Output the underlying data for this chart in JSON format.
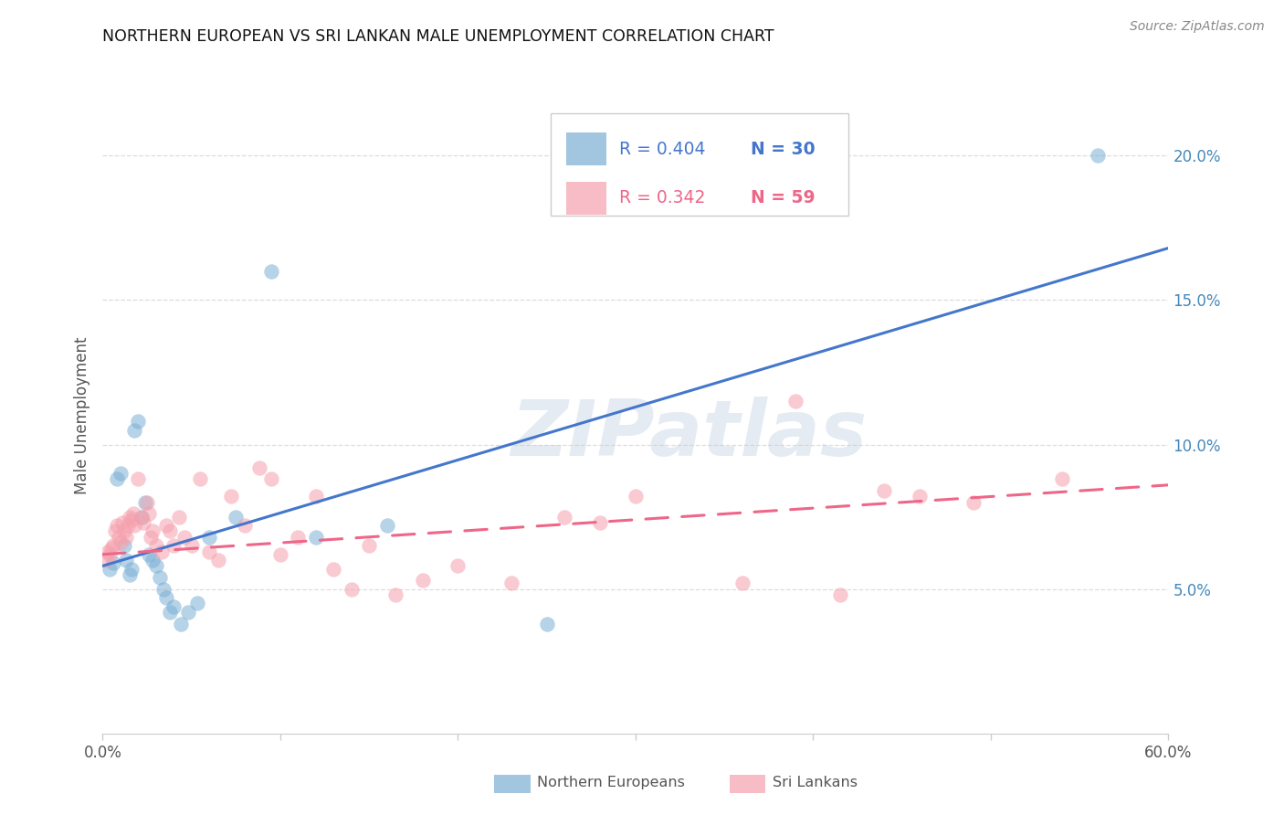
{
  "title": "NORTHERN EUROPEAN VS SRI LANKAN MALE UNEMPLOYMENT CORRELATION CHART",
  "source": "Source: ZipAtlas.com",
  "ylabel": "Male Unemployment",
  "x_min": 0.0,
  "x_max": 0.6,
  "y_min": 0.0,
  "y_max": 0.22,
  "x_ticks": [
    0.0,
    0.1,
    0.2,
    0.3,
    0.4,
    0.5,
    0.6
  ],
  "x_tick_labels_show": [
    "0.0%",
    "",
    "",
    "",
    "",
    "",
    "60.0%"
  ],
  "y_ticks": [
    0.05,
    0.1,
    0.15,
    0.2
  ],
  "y_tick_labels": [
    "5.0%",
    "10.0%",
    "15.0%",
    "20.0%"
  ],
  "watermark": "ZIPatlas",
  "legend_blue_r": "R = 0.404",
  "legend_blue_n": "N = 30",
  "legend_pink_r": "R = 0.342",
  "legend_pink_n": "N = 59",
  "blue_dot_color": "#7BAFD4",
  "pink_dot_color": "#F5A0AD",
  "blue_line_color": "#4477CC",
  "pink_line_color": "#EE6688",
  "blue_r_color": "#4477CC",
  "pink_r_color": "#EE6688",
  "blue_n_color": "#4477CC",
  "pink_n_color": "#EE6688",
  "grid_color": "#dddddd",
  "spine_color": "#cccccc",
  "title_color": "#111111",
  "source_color": "#888888",
  "ylabel_color": "#555555",
  "xtick_color": "#555555",
  "ytick_color": "#4488BB",
  "legend_label_color": "#555555",
  "blue_scatter": [
    [
      0.004,
      0.057
    ],
    [
      0.006,
      0.059
    ],
    [
      0.008,
      0.088
    ],
    [
      0.01,
      0.09
    ],
    [
      0.012,
      0.065
    ],
    [
      0.013,
      0.06
    ],
    [
      0.015,
      0.055
    ],
    [
      0.016,
      0.057
    ],
    [
      0.018,
      0.105
    ],
    [
      0.02,
      0.108
    ],
    [
      0.022,
      0.075
    ],
    [
      0.024,
      0.08
    ],
    [
      0.026,
      0.062
    ],
    [
      0.028,
      0.06
    ],
    [
      0.03,
      0.058
    ],
    [
      0.032,
      0.054
    ],
    [
      0.034,
      0.05
    ],
    [
      0.036,
      0.047
    ],
    [
      0.038,
      0.042
    ],
    [
      0.04,
      0.044
    ],
    [
      0.044,
      0.038
    ],
    [
      0.048,
      0.042
    ],
    [
      0.053,
      0.045
    ],
    [
      0.06,
      0.068
    ],
    [
      0.075,
      0.075
    ],
    [
      0.095,
      0.16
    ],
    [
      0.12,
      0.068
    ],
    [
      0.16,
      0.072
    ],
    [
      0.25,
      0.038
    ],
    [
      0.56,
      0.2
    ]
  ],
  "pink_scatter": [
    [
      0.002,
      0.06
    ],
    [
      0.003,
      0.063
    ],
    [
      0.004,
      0.062
    ],
    [
      0.005,
      0.064
    ],
    [
      0.006,
      0.065
    ],
    [
      0.007,
      0.07
    ],
    [
      0.008,
      0.072
    ],
    [
      0.009,
      0.068
    ],
    [
      0.01,
      0.066
    ],
    [
      0.011,
      0.073
    ],
    [
      0.012,
      0.07
    ],
    [
      0.013,
      0.068
    ],
    [
      0.014,
      0.072
    ],
    [
      0.015,
      0.075
    ],
    [
      0.016,
      0.074
    ],
    [
      0.017,
      0.076
    ],
    [
      0.018,
      0.072
    ],
    [
      0.02,
      0.088
    ],
    [
      0.022,
      0.075
    ],
    [
      0.023,
      0.073
    ],
    [
      0.025,
      0.08
    ],
    [
      0.026,
      0.076
    ],
    [
      0.027,
      0.068
    ],
    [
      0.028,
      0.07
    ],
    [
      0.03,
      0.065
    ],
    [
      0.033,
      0.063
    ],
    [
      0.036,
      0.072
    ],
    [
      0.038,
      0.07
    ],
    [
      0.04,
      0.065
    ],
    [
      0.043,
      0.075
    ],
    [
      0.046,
      0.068
    ],
    [
      0.05,
      0.065
    ],
    [
      0.055,
      0.088
    ],
    [
      0.06,
      0.063
    ],
    [
      0.065,
      0.06
    ],
    [
      0.072,
      0.082
    ],
    [
      0.08,
      0.072
    ],
    [
      0.088,
      0.092
    ],
    [
      0.095,
      0.088
    ],
    [
      0.1,
      0.062
    ],
    [
      0.11,
      0.068
    ],
    [
      0.12,
      0.082
    ],
    [
      0.13,
      0.057
    ],
    [
      0.14,
      0.05
    ],
    [
      0.15,
      0.065
    ],
    [
      0.165,
      0.048
    ],
    [
      0.18,
      0.053
    ],
    [
      0.2,
      0.058
    ],
    [
      0.23,
      0.052
    ],
    [
      0.26,
      0.075
    ],
    [
      0.28,
      0.073
    ],
    [
      0.3,
      0.082
    ],
    [
      0.36,
      0.052
    ],
    [
      0.39,
      0.115
    ],
    [
      0.415,
      0.048
    ],
    [
      0.44,
      0.084
    ],
    [
      0.46,
      0.082
    ],
    [
      0.49,
      0.08
    ],
    [
      0.54,
      0.088
    ]
  ],
  "blue_trend_x": [
    0.0,
    0.6
  ],
  "blue_trend_y": [
    0.058,
    0.168
  ],
  "pink_trend_x": [
    0.0,
    0.6
  ],
  "pink_trend_y": [
    0.062,
    0.086
  ]
}
